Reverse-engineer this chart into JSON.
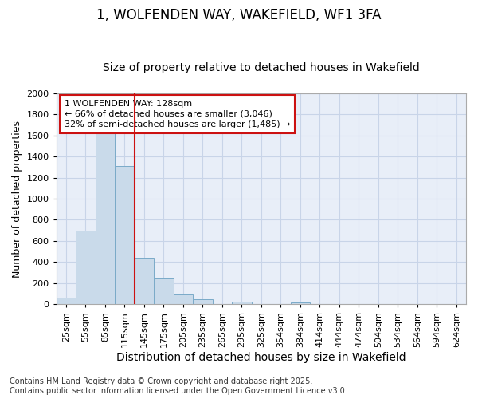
{
  "title": "1, WOLFENDEN WAY, WAKEFIELD, WF1 3FA",
  "subtitle": "Size of property relative to detached houses in Wakefield",
  "xlabel": "Distribution of detached houses by size in Wakefield",
  "ylabel": "Number of detached properties",
  "categories": [
    "25sqm",
    "55sqm",
    "85sqm",
    "115sqm",
    "145sqm",
    "175sqm",
    "205sqm",
    "235sqm",
    "265sqm",
    "295sqm",
    "325sqm",
    "354sqm",
    "384sqm",
    "414sqm",
    "444sqm",
    "474sqm",
    "504sqm",
    "534sqm",
    "564sqm",
    "594sqm",
    "624sqm"
  ],
  "values": [
    65,
    700,
    1660,
    1310,
    440,
    255,
    90,
    50,
    0,
    25,
    0,
    0,
    20,
    0,
    0,
    0,
    0,
    0,
    0,
    0,
    0
  ],
  "bar_color": "#c9daea",
  "bar_edge_color": "#7aaac8",
  "grid_color": "#c8d4e8",
  "bg_color": "#e8eef8",
  "vline_color": "#cc1111",
  "annotation_text": "1 WOLFENDEN WAY: 128sqm\n← 66% of detached houses are smaller (3,046)\n32% of semi-detached houses are larger (1,485) →",
  "annotation_box_color": "#cc1111",
  "footer_line1": "Contains HM Land Registry data © Crown copyright and database right 2025.",
  "footer_line2": "Contains public sector information licensed under the Open Government Licence v3.0.",
  "ylim": [
    0,
    2000
  ],
  "yticks": [
    0,
    200,
    400,
    600,
    800,
    1000,
    1200,
    1400,
    1600,
    1800,
    2000
  ],
  "title_fontsize": 12,
  "subtitle_fontsize": 10,
  "xlabel_fontsize": 10,
  "ylabel_fontsize": 9,
  "tick_fontsize": 8,
  "annotation_fontsize": 8,
  "footer_fontsize": 7
}
